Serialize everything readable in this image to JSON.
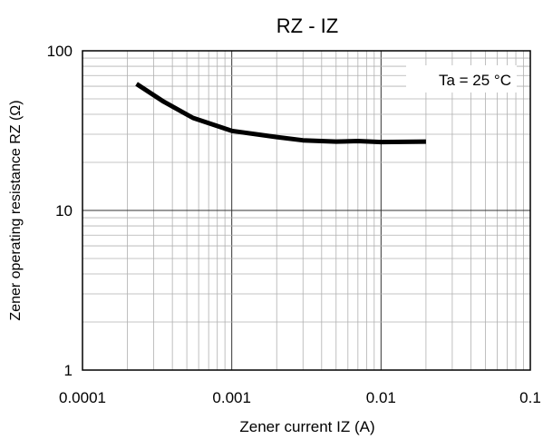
{
  "chart_data": {
    "type": "line",
    "title": "RZ - IZ",
    "xlabel": "Zener current IZ (A)",
    "ylabel": "Zener operating resistance RZ (Ω)",
    "annotation": "Ta = 25 °C",
    "x_scale": "log",
    "y_scale": "log",
    "xlim": [
      0.0001,
      0.1
    ],
    "ylim": [
      1,
      100
    ],
    "x_ticks": [
      "0.0001",
      "0.001",
      "0.01",
      "0.1"
    ],
    "y_ticks": [
      "1",
      "10",
      "100"
    ],
    "grid": true,
    "series": [
      {
        "color": "#000000",
        "x": [
          0.00023,
          0.00035,
          0.00055,
          0.001,
          0.002,
          0.003,
          0.005,
          0.007,
          0.01,
          0.02
        ],
        "y": [
          62,
          48,
          38,
          31.5,
          28.8,
          27.5,
          27,
          27.2,
          26.8,
          27
        ]
      }
    ]
  }
}
